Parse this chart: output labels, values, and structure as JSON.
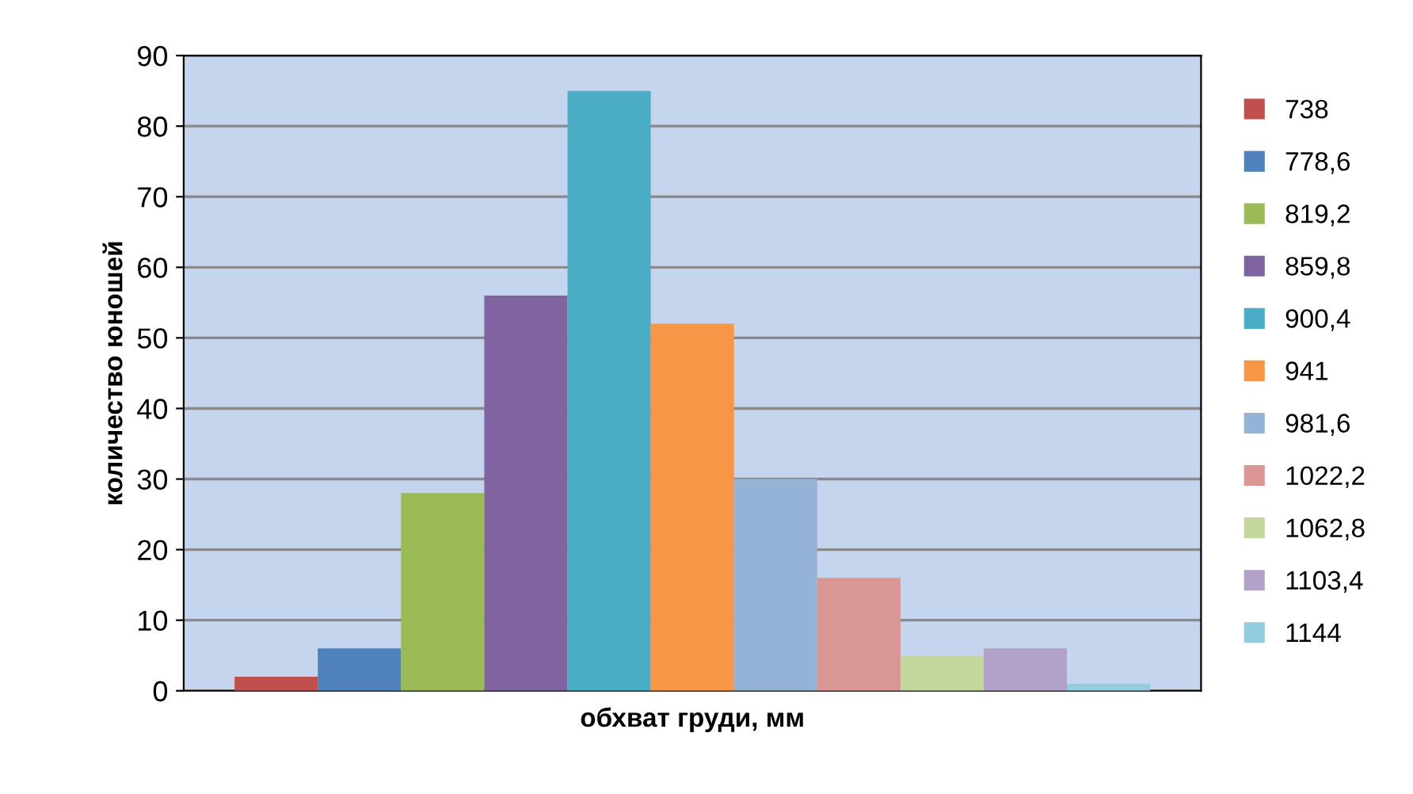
{
  "chart_data": {
    "type": "bar",
    "xlabel": "обхват груди, мм",
    "ylabel": "количество юношей",
    "categories": [
      null
    ],
    "series": [
      {
        "name": "738",
        "color": "#c0504d",
        "values": [
          2
        ]
      },
      {
        "name": "778,6",
        "color": "#4f81bd",
        "values": [
          6
        ]
      },
      {
        "name": "819,2",
        "color": "#9bbb59",
        "values": [
          28
        ]
      },
      {
        "name": "859,8",
        "color": "#8064a2",
        "values": [
          56
        ]
      },
      {
        "name": "900,4",
        "color": "#4bacc6",
        "values": [
          85
        ]
      },
      {
        "name": "941",
        "color": "#f79646",
        "values": [
          52
        ]
      },
      {
        "name": "981,6",
        "color": "#95b3d7",
        "values": [
          30
        ]
      },
      {
        "name": "1022,2",
        "color": "#d99694",
        "values": [
          16
        ]
      },
      {
        "name": "1062,8",
        "color": "#c3d69b",
        "values": [
          5
        ]
      },
      {
        "name": "1103,4",
        "color": "#b3a2c7",
        "values": [
          6
        ]
      },
      {
        "name": "1144",
        "color": "#93cddd",
        "values": [
          1
        ]
      }
    ],
    "ylim": [
      0,
      90
    ],
    "yticks": [
      0,
      10,
      20,
      30,
      40,
      50,
      60,
      70,
      80,
      90
    ],
    "grid": "y",
    "legend": "right"
  }
}
